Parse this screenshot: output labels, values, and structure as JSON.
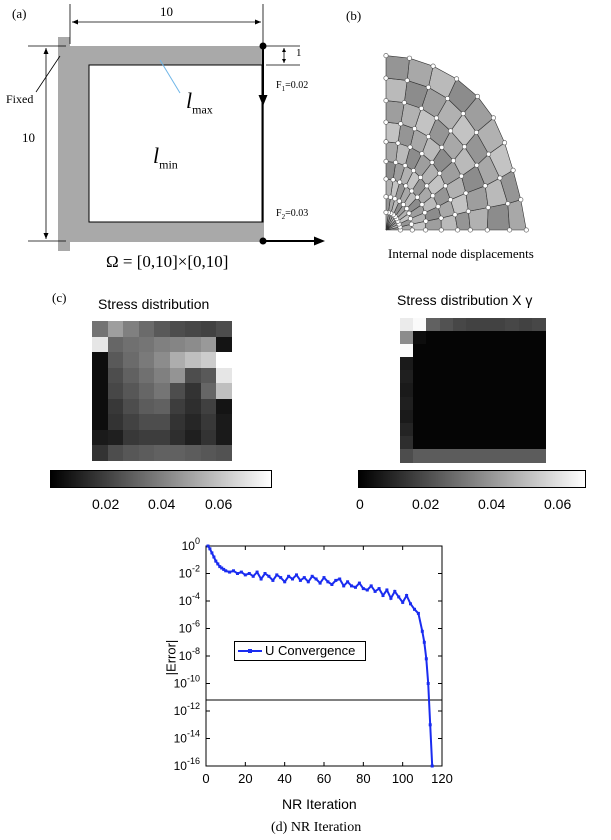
{
  "panel_a": {
    "label": "(a)",
    "dim_top": "10",
    "dim_left": "10",
    "dim_thickness": "1",
    "fixed_label": "Fixed",
    "l_max": "l",
    "l_max_sub": "max",
    "l_min": "l",
    "l_min_sub": "min",
    "f1": "F",
    "f1_sub": "1",
    "f1_val": "=0.02",
    "f2": "F",
    "f2_sub": "2",
    "f2_val": "=0.03",
    "domain": "Ω = [0,10]×[0,10]"
  },
  "panel_b": {
    "label": "(b)",
    "caption": "Internal node displacements"
  },
  "panel_c": {
    "label": "(c)",
    "left_title": "Stress distribution",
    "right_title": "Stress distribution X γ",
    "left_ticks": [
      "0.02",
      "0.04",
      "0.06"
    ],
    "right_ticks": [
      "0",
      "0.02",
      "0.04",
      "0.06"
    ],
    "left_grid": [
      [
        0.45,
        0.62,
        0.5,
        0.42,
        0.35,
        0.3,
        0.28,
        0.26,
        0.3
      ],
      [
        0.9,
        0.4,
        0.44,
        0.46,
        0.5,
        0.52,
        0.55,
        0.6,
        0.08
      ],
      [
        0.05,
        0.35,
        0.42,
        0.48,
        0.55,
        0.68,
        0.75,
        0.8,
        1.0
      ],
      [
        0.05,
        0.3,
        0.38,
        0.44,
        0.5,
        0.58,
        0.3,
        0.35,
        0.9
      ],
      [
        0.05,
        0.28,
        0.34,
        0.4,
        0.46,
        0.3,
        0.2,
        0.4,
        0.75
      ],
      [
        0.05,
        0.22,
        0.3,
        0.36,
        0.38,
        0.24,
        0.18,
        0.25,
        0.08
      ],
      [
        0.05,
        0.2,
        0.26,
        0.3,
        0.3,
        0.2,
        0.15,
        0.22,
        0.1
      ],
      [
        0.1,
        0.12,
        0.22,
        0.24,
        0.24,
        0.18,
        0.12,
        0.2,
        0.1
      ],
      [
        0.2,
        0.3,
        0.34,
        0.36,
        0.38,
        0.38,
        0.36,
        0.34,
        0.32
      ]
    ],
    "right_grid": [
      [
        0.92,
        0.98,
        0.38,
        0.32,
        0.28,
        0.26,
        0.26,
        0.26,
        0.28,
        0.26,
        0.28
      ],
      [
        0.55,
        0.05,
        0.02,
        0.02,
        0.02,
        0.02,
        0.02,
        0.02,
        0.02,
        0.02,
        0.02
      ],
      [
        0.98,
        0.02,
        0.02,
        0.02,
        0.02,
        0.02,
        0.02,
        0.02,
        0.02,
        0.02,
        0.02
      ],
      [
        0.1,
        0.02,
        0.02,
        0.02,
        0.02,
        0.02,
        0.02,
        0.02,
        0.02,
        0.02,
        0.02
      ],
      [
        0.12,
        0.02,
        0.02,
        0.02,
        0.02,
        0.02,
        0.02,
        0.02,
        0.02,
        0.02,
        0.02
      ],
      [
        0.1,
        0.02,
        0.02,
        0.02,
        0.02,
        0.02,
        0.02,
        0.02,
        0.02,
        0.02,
        0.02
      ],
      [
        0.12,
        0.02,
        0.02,
        0.02,
        0.02,
        0.02,
        0.02,
        0.02,
        0.02,
        0.02,
        0.02
      ],
      [
        0.1,
        0.02,
        0.02,
        0.02,
        0.02,
        0.02,
        0.02,
        0.02,
        0.02,
        0.02,
        0.02
      ],
      [
        0.14,
        0.02,
        0.02,
        0.02,
        0.02,
        0.02,
        0.02,
        0.02,
        0.02,
        0.02,
        0.02
      ],
      [
        0.18,
        0.02,
        0.02,
        0.02,
        0.02,
        0.02,
        0.02,
        0.02,
        0.02,
        0.02,
        0.02
      ],
      [
        0.3,
        0.36,
        0.36,
        0.36,
        0.36,
        0.36,
        0.36,
        0.36,
        0.36,
        0.36,
        0.36
      ]
    ]
  },
  "panel_d": {
    "caption": "(d) NR Iteration"
  },
  "chart_data": {
    "type": "line",
    "title": "",
    "xlabel": "NR Iteration",
    "ylabel": "|Error|",
    "xlim": [
      0,
      120
    ],
    "ylim_log10": [
      -16,
      0
    ],
    "yscale": "log",
    "x_ticks": [
      "0",
      "20",
      "40",
      "60",
      "80",
      "100",
      "120"
    ],
    "y_ticks": [
      "10",
      "10",
      "10",
      "10",
      "10",
      "10",
      "10",
      "10",
      "10"
    ],
    "y_tick_exps": [
      "0",
      "-2",
      "-4",
      "-6",
      "-8",
      "-10",
      "-12",
      "-14",
      "-16"
    ],
    "legend": {
      "position": "center-left",
      "entries": [
        "U Convergence"
      ]
    },
    "series_color": "#1a2cf0",
    "reference_line_log10": -11.2,
    "series": [
      {
        "name": "U Convergence",
        "x": [
          1,
          2,
          3,
          4,
          5,
          6,
          7,
          8,
          9,
          10,
          12,
          14,
          16,
          18,
          20,
          22,
          24,
          26,
          28,
          30,
          32,
          34,
          36,
          38,
          40,
          42,
          44,
          46,
          48,
          50,
          52,
          54,
          56,
          58,
          60,
          62,
          64,
          66,
          68,
          70,
          72,
          74,
          76,
          78,
          80,
          82,
          84,
          86,
          88,
          90,
          92,
          94,
          96,
          98,
          100,
          102,
          104,
          106,
          108,
          110,
          111,
          112,
          113,
          114,
          115
        ],
        "log10_y": [
          0,
          -0.2,
          -0.5,
          -0.8,
          -1.1,
          -1.3,
          -1.5,
          -1.6,
          -1.7,
          -1.8,
          -1.9,
          -1.8,
          -2.0,
          -1.9,
          -2.1,
          -2.0,
          -2.2,
          -1.9,
          -2.4,
          -2.0,
          -2.2,
          -2.5,
          -2.1,
          -2.3,
          -2.6,
          -2.2,
          -2.4,
          -2.1,
          -2.5,
          -2.3,
          -2.6,
          -2.2,
          -2.4,
          -2.7,
          -2.3,
          -2.6,
          -2.8,
          -2.5,
          -2.4,
          -2.9,
          -2.6,
          -2.9,
          -3.0,
          -2.7,
          -3.1,
          -3.2,
          -2.9,
          -3.3,
          -3.1,
          -3.6,
          -3.2,
          -3.8,
          -3.3,
          -3.7,
          -4.1,
          -3.6,
          -4.2,
          -4.6,
          -4.9,
          -6.2,
          -7.0,
          -8.2,
          -10.0,
          -13.0,
          -16.0
        ]
      }
    ]
  }
}
